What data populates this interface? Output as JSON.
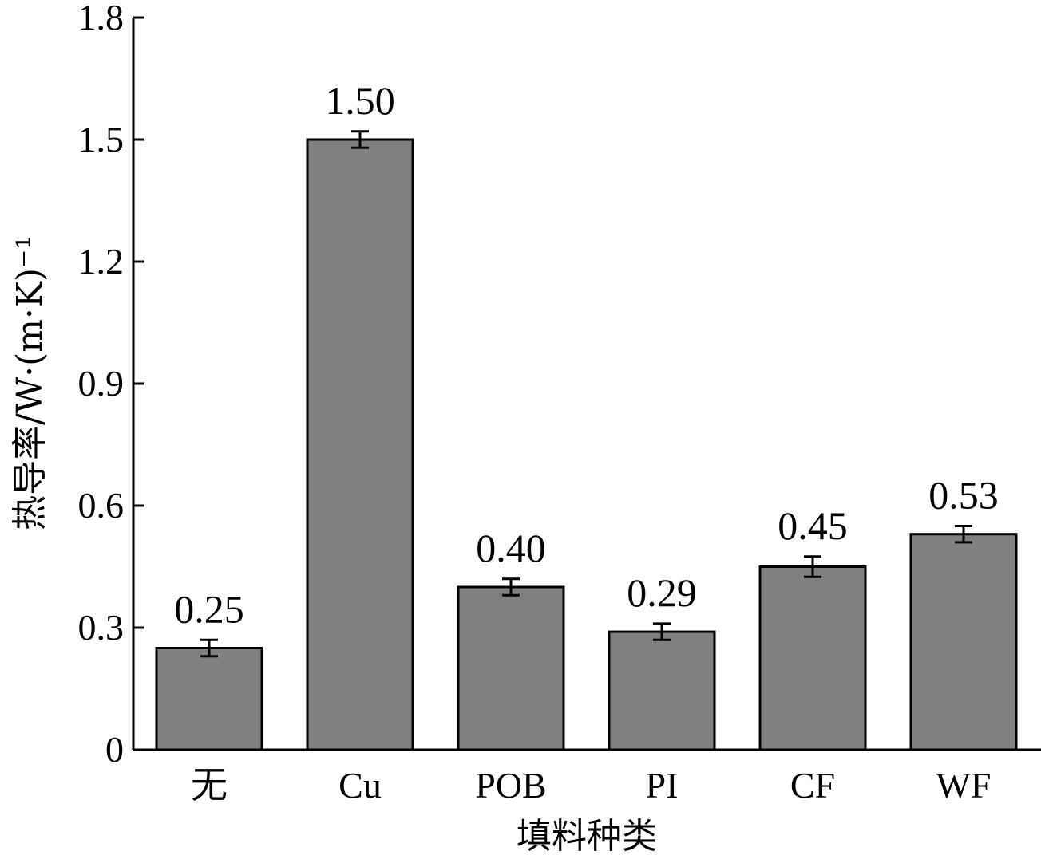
{
  "chart_data": {
    "type": "bar",
    "xlabel": "填料种类",
    "ylabel": "热导率/W·(m·K)⁻¹",
    "ylim": [
      0,
      1.8
    ],
    "yticks": [
      "0",
      "0.3",
      "0.6",
      "0.9",
      "1.2",
      "1.5",
      "1.8"
    ],
    "categories": [
      "无",
      "Cu",
      "POB",
      "PI",
      "CF",
      "WF"
    ],
    "values": [
      0.25,
      1.5,
      0.4,
      0.29,
      0.45,
      0.53
    ],
    "value_labels": [
      "0.25",
      "1.50",
      "0.40",
      "0.29",
      "0.45",
      "0.53"
    ],
    "error": [
      0.02,
      0.02,
      0.02,
      0.02,
      0.025,
      0.02
    ],
    "bar_color": "#808080",
    "grid": false
  }
}
